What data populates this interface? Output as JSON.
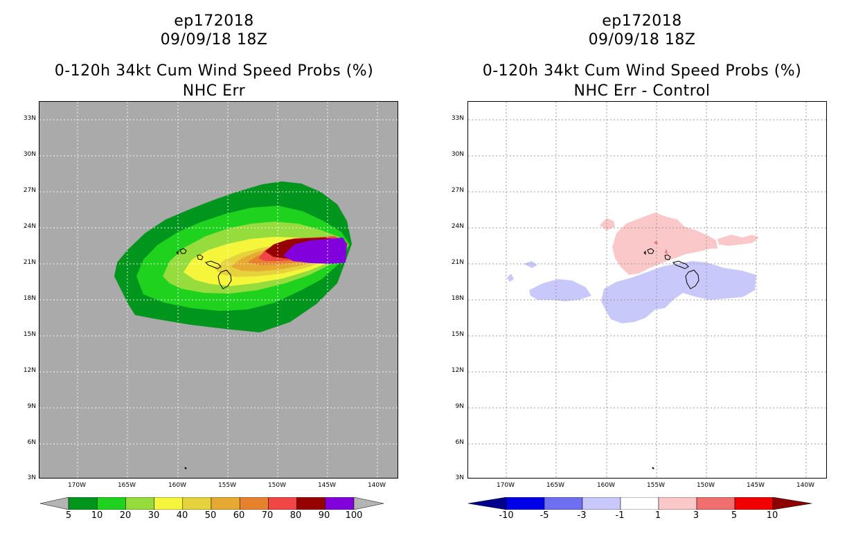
{
  "left_panel": {
    "title_line1": "ep172018",
    "title_line2": "09/09/18 18Z",
    "title_line3": "0-120h 34kt Cum Wind Speed Probs (%)",
    "title_line4": "NHC Err",
    "background_color": "#aaaaaa",
    "colorbar": {
      "labels": [
        "5",
        "10",
        "20",
        "30",
        "40",
        "50",
        "60",
        "70",
        "80",
        "90",
        "100"
      ],
      "colors": [
        "#00961e",
        "#1ed21e",
        "#96dc3c",
        "#f5f53c",
        "#e6d23c",
        "#e6aa32",
        "#e6822d",
        "#f04646",
        "#960000",
        "#8200dc"
      ],
      "low_arrow_color": "#b4b4b4",
      "high_arrow_color": "#b4b4b4"
    }
  },
  "right_panel": {
    "title_line1": "ep172018",
    "title_line2": "09/09/18 18Z",
    "title_line3": "0-120h 34kt Cum Wind Speed Probs (%)",
    "title_line4": "NHC Err - Control",
    "background_color": "#ffffff",
    "colorbar": {
      "labels": [
        "-10",
        "-5",
        "-3",
        "-1",
        "1",
        "3",
        "5",
        "10"
      ],
      "colors": [
        "#0000e6",
        "#6e6ef0",
        "#c8c8fa",
        "#ffffff",
        "#fac8c8",
        "#f06e6e",
        "#f00000"
      ],
      "low_arrow_color": "#00008c",
      "high_arrow_color": "#8c0000"
    }
  },
  "axes": {
    "lat_labels": [
      "33N",
      "30N",
      "27N",
      "24N",
      "21N",
      "18N",
      "15N",
      "12N",
      "9N",
      "6N",
      "3N"
    ],
    "lon_labels": [
      "170W",
      "165W",
      "160W",
      "155W",
      "150W",
      "145W",
      "140W"
    ]
  }
}
